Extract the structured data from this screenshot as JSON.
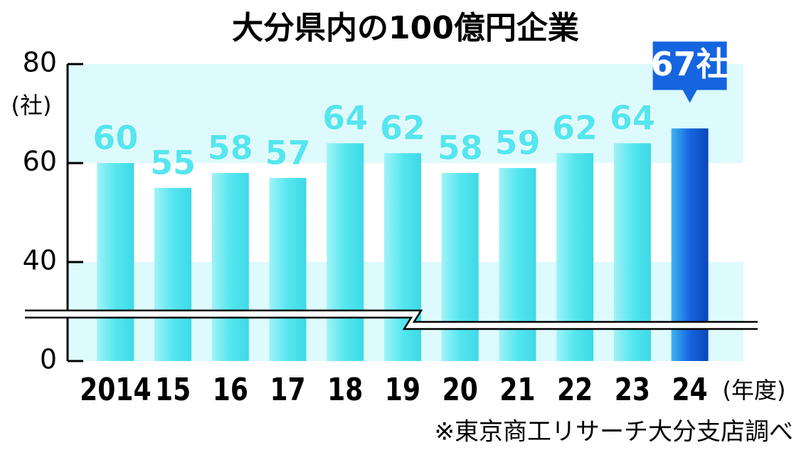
{
  "chart_data": {
    "type": "bar",
    "title": "大分県内の100億円企業",
    "y_unit": "(社)",
    "x_unit": "(年度)",
    "source": "※東京商工リサーチ大分支店調べ",
    "categories": [
      "2014",
      "15",
      "16",
      "17",
      "18",
      "19",
      "20",
      "21",
      "22",
      "23",
      "24"
    ],
    "values": [
      60,
      55,
      58,
      57,
      64,
      62,
      58,
      59,
      62,
      64,
      67
    ],
    "value_labels": [
      "60",
      "55",
      "58",
      "57",
      "64",
      "62",
      "58",
      "59",
      "62",
      "64",
      "67社"
    ],
    "colors": [
      "#55e6ef",
      "#55e6ef",
      "#55e6ef",
      "#55e6ef",
      "#55e6ef",
      "#55e6ef",
      "#55e6ef",
      "#55e6ef",
      "#55e6ef",
      "#55e6ef",
      "#1565e0"
    ],
    "highlight_color": "#1565e0",
    "band_color": "#ddfafc",
    "axis_break": true,
    "ylim": [
      0,
      80
    ],
    "yticks": [
      0,
      40,
      60,
      80
    ],
    "grid": false
  }
}
